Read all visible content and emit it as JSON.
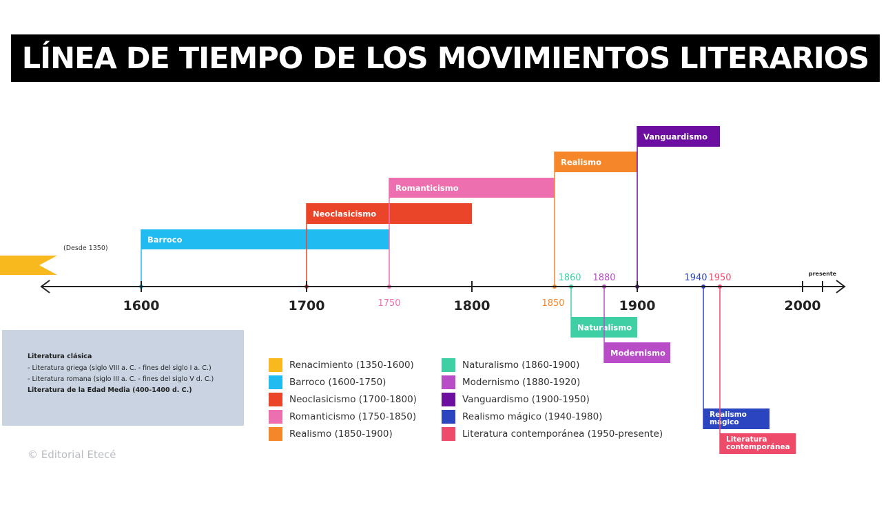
{
  "title": "LÍNEA DE TIEMPO DE LOS MOVIMIENTOS LITERARIOS",
  "axis": {
    "main_ticks": [
      "1600",
      "1700",
      "1800",
      "1900",
      "2000"
    ],
    "present_label": "presente"
  },
  "periods": [
    {
      "label": "Renacimiento",
      "color": "#f8b91f",
      "start": 1350,
      "end": 1600,
      "note": "(Desde 1350)",
      "tick_label": ""
    },
    {
      "label": "Barroco",
      "color": "#1fbbf1",
      "start": 1600,
      "end": 1750,
      "tick_label": ""
    },
    {
      "label": "Neoclasicismo",
      "color": "#ea4429",
      "start": 1700,
      "end": 1800,
      "tick_label": ""
    },
    {
      "label": "Romanticismo",
      "color": "#ee6fb0",
      "start": 1750,
      "end": 1850,
      "tick_label": "1750"
    },
    {
      "label": "Realismo",
      "color": "#f5862a",
      "start": 1850,
      "end": 1900,
      "tick_label": "1850"
    },
    {
      "label": "Vanguardismo",
      "color": "#6c0fa0",
      "start": 1900,
      "end": 1950,
      "tick_label": ""
    },
    {
      "label": "Naturalismo",
      "color": "#3fcfa5",
      "start": 1860,
      "end": 1900,
      "tick_label": "1860"
    },
    {
      "label": "Modernismo",
      "color": "#b84dc7",
      "start": 1880,
      "end": 1920,
      "tick_label": "1880"
    },
    {
      "label": "Realismo\nmágico",
      "color": "#2b45c0",
      "start": 1940,
      "end": 1980,
      "tick_label": "1940"
    },
    {
      "label": "Literatura\ncontemporánea",
      "color": "#ee4a6a",
      "start": 1950,
      "end": 2010,
      "tick_label": "1950"
    }
  ],
  "notes": {
    "heading": "Literatura clásica",
    "line1": "- Literatura griega (siglo VIII a. C. - fines del siglo I a. C.)",
    "line2": "- Literatura romana (siglo III a. C. - fines del siglo V d. C.)",
    "line3": "Literatura de la Edad Media (400-1400 d. C.)"
  },
  "legend": [
    {
      "label": "Renacimiento (1350-1600)",
      "color": "#f8b91f"
    },
    {
      "label": "Barroco (1600-1750)",
      "color": "#1fbbf1"
    },
    {
      "label": "Neoclasicismo (1700-1800)",
      "color": "#ea4429"
    },
    {
      "label": "Romanticismo (1750-1850)",
      "color": "#ee6fb0"
    },
    {
      "label": "Realismo (1850-1900)",
      "color": "#f5862a"
    },
    {
      "label": "Naturalismo (1860-1900)",
      "color": "#3fcfa5"
    },
    {
      "label": "Modernismo (1880-1920)",
      "color": "#b84dc7"
    },
    {
      "label": "Vanguardismo (1900-1950)",
      "color": "#6c0fa0"
    },
    {
      "label": "Realismo mágico (1940-1980)",
      "color": "#2b45c0"
    },
    {
      "label": "Literatura contemporánea (1950-presente)",
      "color": "#ee4a6a"
    }
  ],
  "credit": "© Editorial Etecé"
}
